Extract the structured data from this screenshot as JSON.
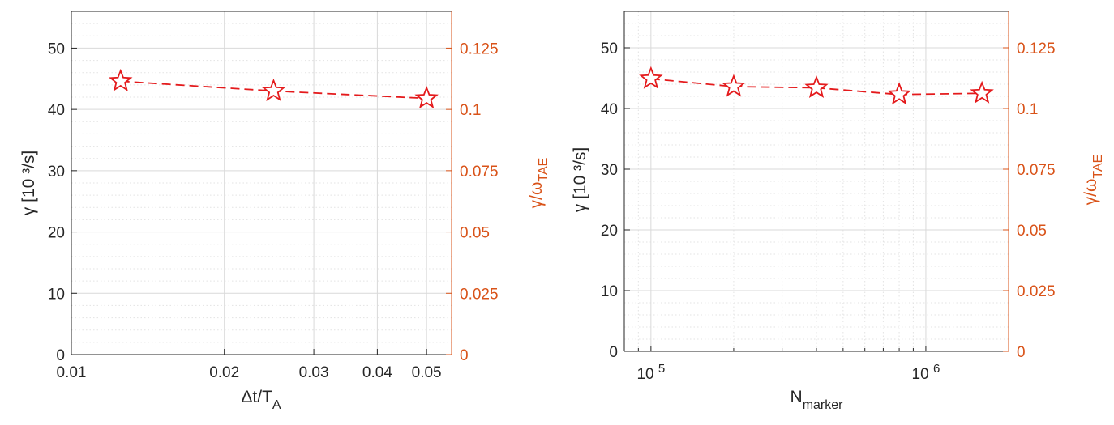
{
  "colors": {
    "series": "#e41a1c",
    "right_axis": "#d95319",
    "axis": "#262626",
    "grid_major": "#d9d9d9",
    "grid_minor": "#e3e3e3"
  },
  "chart_data": [
    {
      "type": "line",
      "marker": "star",
      "line_style": "dashed",
      "grid": true,
      "x_scale": "log",
      "xlabel": "Δt/T",
      "xlabel_sub": "A",
      "ylabel": "γ [10 ³/s]",
      "ylabel_right": "γ/ω",
      "ylabel_right_sub": "TAE",
      "xlim": [
        0.01,
        0.056
      ],
      "ylim": [
        0,
        56
      ],
      "ylim_right": [
        0,
        0.14
      ],
      "x_ticks": [
        0.01,
        0.02,
        0.03,
        0.04,
        0.05
      ],
      "x_tick_labels": [
        "0.01",
        "0.02",
        "0.03",
        "0.04",
        "0.05"
      ],
      "y_ticks": [
        0,
        10,
        20,
        30,
        40,
        50
      ],
      "y_tick_labels": [
        "0",
        "10",
        "20",
        "30",
        "40",
        "50"
      ],
      "y_right_ticks": [
        0,
        0.025,
        0.05,
        0.075,
        0.1,
        0.125
      ],
      "y_right_tick_labels": [
        "0",
        "0.025",
        "0.05",
        "0.075",
        "0.1",
        "0.125"
      ],
      "x": [
        0.0125,
        0.025,
        0.05
      ],
      "y": [
        44.6,
        43.0,
        41.8
      ]
    },
    {
      "type": "line",
      "marker": "star",
      "line_style": "dashed",
      "grid": true,
      "x_scale": "log",
      "xlabel": "N",
      "xlabel_sub": "marker",
      "ylabel": "γ [10 ³/s]",
      "ylabel_right": "γ/ω",
      "ylabel_right_sub": "TAE",
      "xlim": [
        80000,
        2000000
      ],
      "ylim": [
        0,
        56
      ],
      "ylim_right": [
        0,
        0.14
      ],
      "x_ticks": [
        100000,
        1000000
      ],
      "x_tick_labels": [
        {
          "base": "10",
          "exp": "5"
        },
        {
          "base": "10",
          "exp": "6"
        }
      ],
      "y_ticks": [
        0,
        10,
        20,
        30,
        40,
        50
      ],
      "y_tick_labels": [
        "0",
        "10",
        "20",
        "30",
        "40",
        "50"
      ],
      "y_right_ticks": [
        0,
        0.025,
        0.05,
        0.075,
        0.1,
        0.125
      ],
      "y_right_tick_labels": [
        "0",
        "0.025",
        "0.05",
        "0.075",
        "0.1",
        "0.125"
      ],
      "x": [
        100000,
        200000,
        400000,
        800000,
        1600000
      ],
      "y": [
        44.9,
        43.6,
        43.4,
        42.3,
        42.5
      ]
    }
  ]
}
